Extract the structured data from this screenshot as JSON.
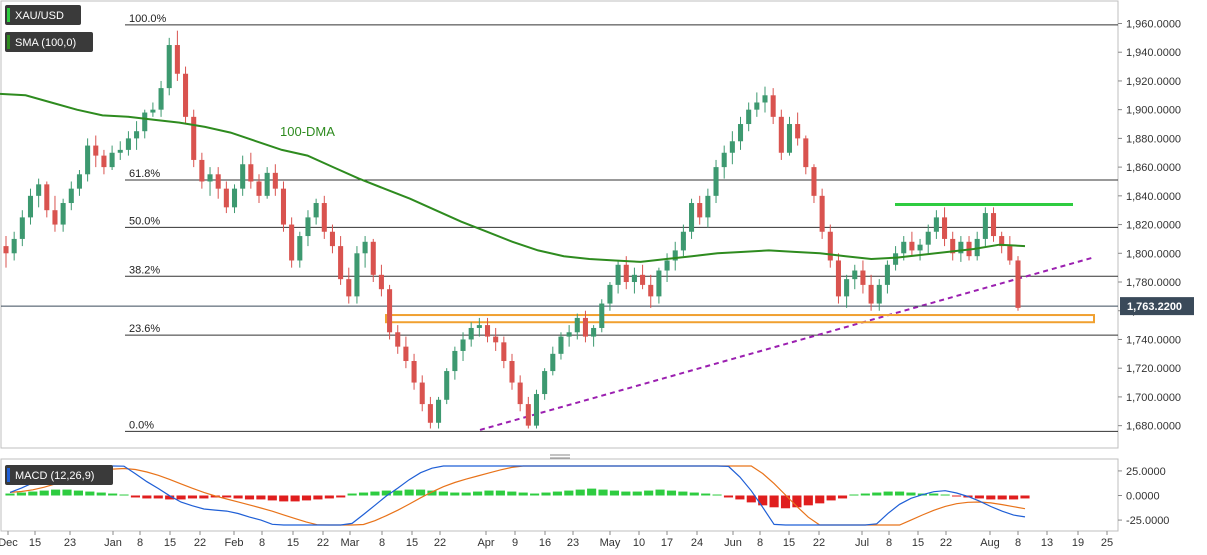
{
  "chart_data": [
    {
      "type": "candlestick",
      "symbol_badge": "XAU/USD",
      "indicator_badge": "SMA (100,0)",
      "price_label": "1,763.2200",
      "dma_label": "100-DMA",
      "ylim": [
        1670,
        1968
      ],
      "y_ticks": [
        "1,680.0000",
        "1,700.0000",
        "1,720.0000",
        "1,740.0000",
        "1,760.0000",
        "1,780.0000",
        "1,800.0000",
        "1,820.0000",
        "1,840.0000",
        "1,860.0000",
        "1,880.0000",
        "1,900.0000",
        "1,920.0000",
        "1,940.0000",
        "1,960.0000"
      ],
      "y_tick_values": [
        1680,
        1700,
        1720,
        1740,
        1760,
        1780,
        1800,
        1820,
        1840,
        1860,
        1880,
        1900,
        1920,
        1940,
        1960
      ],
      "fib_levels": [
        {
          "label": "100.0%",
          "value": 1959
        },
        {
          "label": "61.8%",
          "value": 1851
        },
        {
          "label": "50.0%",
          "value": 1818
        },
        {
          "label": "38.2%",
          "value": 1784
        },
        {
          "label": "23.6%",
          "value": 1743
        },
        {
          "label": "0.0%",
          "value": 1676
        }
      ],
      "candles_ohlc": [
        [
          1805,
          1812,
          1790,
          1800
        ],
        [
          1800,
          1815,
          1795,
          1810
        ],
        [
          1810,
          1830,
          1805,
          1825
        ],
        [
          1825,
          1845,
          1820,
          1840
        ],
        [
          1840,
          1852,
          1832,
          1848
        ],
        [
          1848,
          1850,
          1825,
          1830
        ],
        [
          1830,
          1840,
          1815,
          1820
        ],
        [
          1820,
          1838,
          1815,
          1835
        ],
        [
          1835,
          1850,
          1830,
          1845
        ],
        [
          1845,
          1858,
          1840,
          1855
        ],
        [
          1855,
          1880,
          1850,
          1875
        ],
        [
          1875,
          1882,
          1860,
          1868
        ],
        [
          1868,
          1872,
          1855,
          1860
        ],
        [
          1860,
          1875,
          1858,
          1870
        ],
        [
          1870,
          1878,
          1865,
          1872
        ],
        [
          1872,
          1885,
          1868,
          1880
        ],
        [
          1880,
          1892,
          1872,
          1885
        ],
        [
          1885,
          1900,
          1880,
          1898
        ],
        [
          1898,
          1905,
          1895,
          1900
        ],
        [
          1900,
          1920,
          1895,
          1915
        ],
        [
          1915,
          1950,
          1910,
          1945
        ],
        [
          1945,
          1955,
          1920,
          1925
        ],
        [
          1925,
          1930,
          1890,
          1895
        ],
        [
          1895,
          1900,
          1860,
          1865
        ],
        [
          1865,
          1870,
          1845,
          1850
        ],
        [
          1850,
          1860,
          1840,
          1855
        ],
        [
          1855,
          1860,
          1838,
          1845
        ],
        [
          1845,
          1850,
          1828,
          1832
        ],
        [
          1832,
          1848,
          1828,
          1845
        ],
        [
          1845,
          1868,
          1840,
          1862
        ],
        [
          1862,
          1870,
          1845,
          1850
        ],
        [
          1850,
          1855,
          1835,
          1840
        ],
        [
          1840,
          1860,
          1838,
          1856
        ],
        [
          1856,
          1862,
          1840,
          1845
        ],
        [
          1845,
          1850,
          1815,
          1820
        ],
        [
          1820,
          1825,
          1790,
          1795
        ],
        [
          1795,
          1815,
          1790,
          1812
        ],
        [
          1812,
          1830,
          1805,
          1825
        ],
        [
          1825,
          1838,
          1820,
          1835
        ],
        [
          1835,
          1840,
          1810,
          1815
        ],
        [
          1815,
          1820,
          1800,
          1805
        ],
        [
          1805,
          1812,
          1778,
          1782
        ],
        [
          1782,
          1790,
          1765,
          1770
        ],
        [
          1770,
          1805,
          1765,
          1800
        ],
        [
          1800,
          1812,
          1790,
          1808
        ],
        [
          1808,
          1810,
          1780,
          1785
        ],
        [
          1785,
          1792,
          1770,
          1775
        ],
        [
          1775,
          1778,
          1740,
          1745
        ],
        [
          1745,
          1750,
          1730,
          1735
        ],
        [
          1735,
          1742,
          1720,
          1725
        ],
        [
          1725,
          1730,
          1705,
          1710
        ],
        [
          1710,
          1715,
          1690,
          1695
        ],
        [
          1695,
          1700,
          1678,
          1682
        ],
        [
          1682,
          1700,
          1678,
          1698
        ],
        [
          1698,
          1720,
          1695,
          1718
        ],
        [
          1718,
          1735,
          1712,
          1732
        ],
        [
          1732,
          1745,
          1725,
          1740
        ],
        [
          1740,
          1752,
          1735,
          1748
        ],
        [
          1748,
          1755,
          1742,
          1750
        ],
        [
          1750,
          1755,
          1738,
          1742
        ],
        [
          1742,
          1748,
          1732,
          1738
        ],
        [
          1738,
          1742,
          1720,
          1725
        ],
        [
          1725,
          1730,
          1705,
          1710
        ],
        [
          1710,
          1715,
          1690,
          1695
        ],
        [
          1695,
          1700,
          1678,
          1680
        ],
        [
          1680,
          1705,
          1678,
          1702
        ],
        [
          1702,
          1720,
          1698,
          1718
        ],
        [
          1718,
          1735,
          1715,
          1730
        ],
        [
          1730,
          1745,
          1726,
          1742
        ],
        [
          1742,
          1750,
          1735,
          1745
        ],
        [
          1745,
          1758,
          1740,
          1755
        ],
        [
          1755,
          1760,
          1738,
          1742
        ],
        [
          1742,
          1750,
          1735,
          1748
        ],
        [
          1748,
          1768,
          1745,
          1765
        ],
        [
          1765,
          1780,
          1760,
          1778
        ],
        [
          1778,
          1795,
          1772,
          1792
        ],
        [
          1792,
          1798,
          1775,
          1780
        ],
        [
          1780,
          1790,
          1772,
          1785
        ],
        [
          1785,
          1792,
          1775,
          1778
        ],
        [
          1778,
          1785,
          1762,
          1770
        ],
        [
          1770,
          1790,
          1765,
          1788
        ],
        [
          1788,
          1800,
          1780,
          1795
        ],
        [
          1795,
          1808,
          1788,
          1802
        ],
        [
          1802,
          1820,
          1798,
          1815
        ],
        [
          1815,
          1838,
          1810,
          1835
        ],
        [
          1835,
          1840,
          1820,
          1825
        ],
        [
          1825,
          1845,
          1818,
          1840
        ],
        [
          1840,
          1865,
          1835,
          1860
        ],
        [
          1860,
          1875,
          1852,
          1870
        ],
        [
          1870,
          1885,
          1862,
          1878
        ],
        [
          1878,
          1895,
          1872,
          1890
        ],
        [
          1890,
          1905,
          1885,
          1900
        ],
        [
          1900,
          1912,
          1895,
          1905
        ],
        [
          1905,
          1916,
          1898,
          1910
        ],
        [
          1910,
          1915,
          1890,
          1895
        ],
        [
          1895,
          1900,
          1865,
          1870
        ],
        [
          1870,
          1895,
          1868,
          1890
        ],
        [
          1890,
          1898,
          1875,
          1880
        ],
        [
          1880,
          1882,
          1855,
          1860
        ],
        [
          1860,
          1862,
          1835,
          1840
        ],
        [
          1840,
          1845,
          1810,
          1815
        ],
        [
          1815,
          1820,
          1790,
          1795
        ],
        [
          1795,
          1800,
          1765,
          1770
        ],
        [
          1770,
          1785,
          1762,
          1782
        ],
        [
          1782,
          1792,
          1775,
          1788
        ],
        [
          1788,
          1795,
          1772,
          1778
        ],
        [
          1778,
          1785,
          1760,
          1765
        ],
        [
          1765,
          1782,
          1760,
          1778
        ],
        [
          1778,
          1795,
          1772,
          1792
        ],
        [
          1792,
          1805,
          1788,
          1800
        ],
        [
          1800,
          1812,
          1795,
          1808
        ],
        [
          1808,
          1815,
          1798,
          1802
        ],
        [
          1802,
          1810,
          1795,
          1806
        ],
        [
          1806,
          1820,
          1800,
          1815
        ],
        [
          1815,
          1830,
          1810,
          1825
        ],
        [
          1825,
          1832,
          1805,
          1810
        ],
        [
          1810,
          1815,
          1795,
          1800
        ],
        [
          1800,
          1812,
          1794,
          1808
        ],
        [
          1808,
          1812,
          1795,
          1798
        ],
        [
          1798,
          1815,
          1795,
          1810
        ],
        [
          1810,
          1832,
          1805,
          1828
        ],
        [
          1828,
          1832,
          1808,
          1812
        ],
        [
          1812,
          1815,
          1800,
          1805
        ],
        [
          1805,
          1812,
          1792,
          1795
        ],
        [
          1795,
          1798,
          1760,
          1762
        ]
      ],
      "sma100": [
        1911,
        1910,
        1905,
        1900,
        1896,
        1895,
        1893,
        1891,
        1888,
        1884,
        1878,
        1872,
        1868,
        1860,
        1852,
        1845,
        1838,
        1830,
        1822,
        1815,
        1808,
        1802,
        1798,
        1796,
        1795,
        1794,
        1796,
        1798,
        1800,
        1801,
        1802,
        1801,
        1800,
        1798,
        1796,
        1797,
        1799,
        1801,
        1803,
        1806,
        1805
      ],
      "macd_ylim": [
        -30,
        30
      ],
      "macd_y_ticks": [
        "25.0000",
        "0.0000",
        "-25.0000"
      ],
      "macd_y_tick_values": [
        25,
        0,
        -25
      ],
      "macd_label": "MACD (12,26,9)",
      "macd_histogram": [
        2,
        3,
        4,
        5,
        6,
        6,
        5,
        4,
        3,
        2,
        1,
        -2,
        -3,
        -3,
        -4,
        -4,
        -3,
        -3,
        -2,
        -2,
        -3,
        -4,
        -4,
        -5,
        -6,
        -6,
        -5,
        -4,
        -3,
        -2,
        2,
        3,
        4,
        5,
        5,
        6,
        6,
        5,
        4,
        3,
        3,
        4,
        5,
        5,
        4,
        3,
        2,
        3,
        4,
        5,
        6,
        7,
        6,
        5,
        4,
        4,
        5,
        6,
        5,
        4,
        3,
        2,
        1,
        -2,
        -4,
        -7,
        -10,
        -12,
        -13,
        -12,
        -10,
        -8,
        -5,
        -3,
        1,
        2,
        3,
        4,
        4,
        3,
        2,
        2,
        1,
        -1,
        -2,
        -3,
        -4,
        -4,
        -4,
        -3
      ],
      "x_tick_labels": [
        "Dec",
        "15",
        "23",
        "Jan",
        "8",
        "15",
        "22",
        "Feb",
        "8",
        "15",
        "22",
        "Mar",
        "8",
        "15",
        "22",
        "Apr",
        "9",
        "16",
        "23",
        "May",
        "10",
        "17",
        "24",
        "Jun",
        "8",
        "15",
        "22",
        "Jul",
        "8",
        "15",
        "22",
        "Aug",
        "8",
        "13",
        "19",
        "25"
      ],
      "colors": {
        "up": "#3d9970",
        "down": "#d9534f",
        "sma": "#2e8b1f",
        "fib_line": "#333333",
        "trendline": "#9b1fb0",
        "resistance": "#2ecc40",
        "support_box": "#f0a030",
        "price_badge": "#3a4a5a",
        "badge_bg": "#3a3a3a",
        "macd": "#1f5fd6",
        "signal": "#e8731a",
        "hist_up": "#2ecc40",
        "hist_down": "#e01e1e"
      }
    }
  ]
}
